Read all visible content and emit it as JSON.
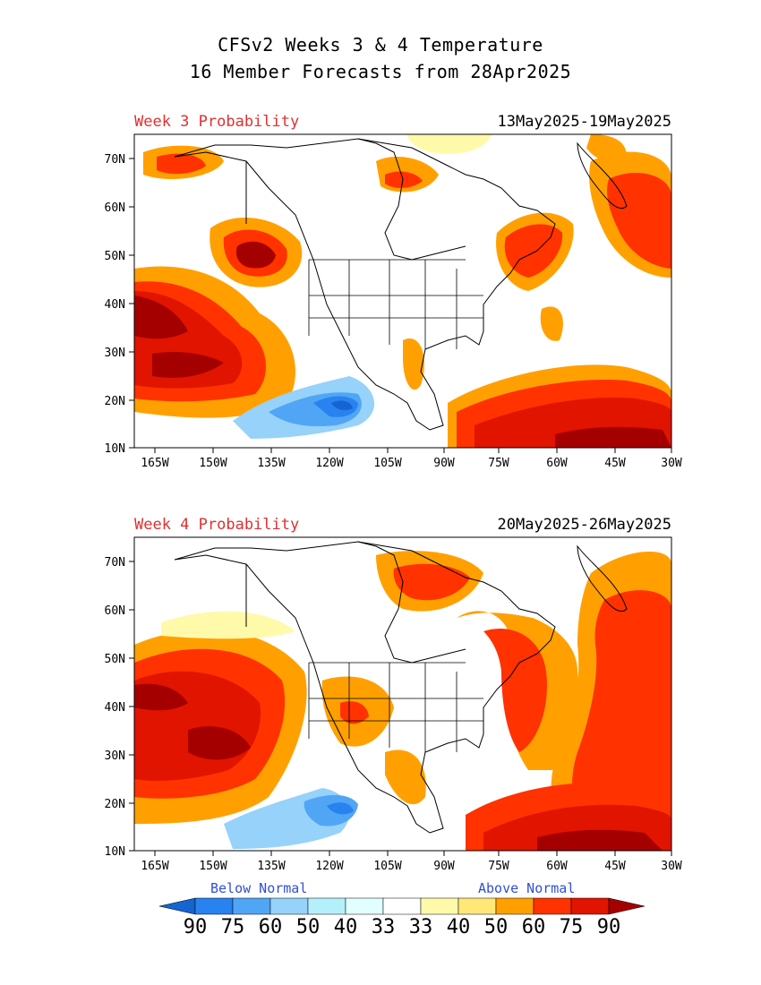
{
  "header": {
    "title_line1": "CFSv2 Weeks 3 & 4 Temperature",
    "title_line2": "16 Member Forecasts from 28Apr2025"
  },
  "panels": [
    {
      "label": "Week 3 Probability",
      "dates": "13May2025-19May2025"
    },
    {
      "label": "Week 4 Probability",
      "dates": "20May2025-26May2025"
    }
  ],
  "axes": {
    "lat_ticks": [
      "70N",
      "60N",
      "50N",
      "40N",
      "30N",
      "20N",
      "10N"
    ],
    "lon_ticks": [
      "165W",
      "150W",
      "135W",
      "120W",
      "105W",
      "90W",
      "75W",
      "60W",
      "45W",
      "30W"
    ]
  },
  "legend": {
    "below_label": "Below Normal",
    "above_label": "Above Normal",
    "values": [
      "90",
      "75",
      "60",
      "50",
      "40",
      "33",
      "33",
      "40",
      "50",
      "60",
      "75",
      "90"
    ],
    "colors": [
      "#1464d2",
      "#2882f0",
      "#50a5f5",
      "#96d2fa",
      "#b4f0fa",
      "#e1ffff",
      "#ffffff",
      "#fffaaa",
      "#ffe878",
      "#ffa000",
      "#ff3200",
      "#e11400",
      "#a50000"
    ]
  }
}
